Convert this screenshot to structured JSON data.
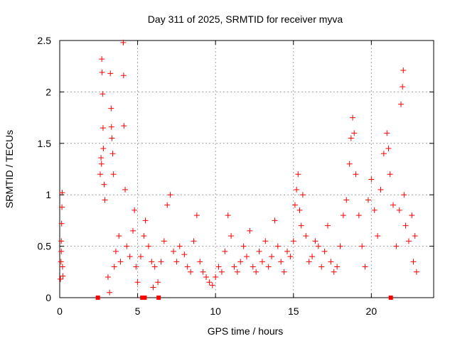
{
  "chart_data": {
    "type": "scatter",
    "title": "Day 311 of 2025, SRMTID for receiver myva",
    "xlabel": "GPS time / hours",
    "ylabel": "SRMTID / TECUs",
    "xlim": [
      0,
      24
    ],
    "ylim": [
      0,
      2.5
    ],
    "xticks": [
      0,
      5,
      10,
      15,
      20
    ],
    "yticks": [
      0,
      0.5,
      1,
      1.5,
      2,
      2.5
    ],
    "xtick_labels": [
      "0",
      "5",
      "10",
      "15",
      "20"
    ],
    "ytick_labels": [
      "0",
      "0.5",
      "1",
      "1.5",
      "2",
      "2.5"
    ],
    "grid": true,
    "series": [
      {
        "name": "SRMTID",
        "marker": "plus",
        "color": "#ff0000",
        "points": [
          [
            0.05,
            0.18
          ],
          [
            0.08,
            0.35
          ],
          [
            0.1,
            0.55
          ],
          [
            0.12,
            0.72
          ],
          [
            0.14,
            0.88
          ],
          [
            0.16,
            1.02
          ],
          [
            0.18,
            0.3
          ],
          [
            0.2,
            0.21
          ],
          [
            2.65,
            1.36
          ],
          [
            2.7,
            2.32
          ],
          [
            2.72,
            2.19
          ],
          [
            2.75,
            1.98
          ],
          [
            2.78,
            1.65
          ],
          [
            2.8,
            1.45
          ],
          [
            2.85,
            1.1
          ],
          [
            2.9,
            0.95
          ],
          [
            3.25,
            2.18
          ],
          [
            3.3,
            1.84
          ],
          [
            3.32,
            1.66
          ],
          [
            3.35,
            1.55
          ],
          [
            3.4,
            1.4
          ],
          [
            3.45,
            1.2
          ],
          [
            4.08,
            2.48
          ],
          [
            4.1,
            2.16
          ],
          [
            4.12,
            1.67
          ],
          [
            4.2,
            1.05
          ],
          [
            0.1,
            0.45
          ],
          [
            2.6,
            1.2
          ],
          [
            2.68,
            1.3
          ],
          [
            3.1,
            0.2
          ],
          [
            3.2,
            0.05
          ],
          [
            3.5,
            0.3
          ],
          [
            3.6,
            0.45
          ],
          [
            3.8,
            0.6
          ],
          [
            3.9,
            0.35
          ],
          [
            4.3,
            0.5
          ],
          [
            4.5,
            0.4
          ],
          [
            4.7,
            0.65
          ],
          [
            4.8,
            0.85
          ],
          [
            4.9,
            0.3
          ],
          [
            5.0,
            0.15
          ],
          [
            5.2,
            0.4
          ],
          [
            5.4,
            0.6
          ],
          [
            5.5,
            0.75
          ],
          [
            5.7,
            0.5
          ],
          [
            5.9,
            0.35
          ],
          [
            6.0,
            0.1
          ],
          [
            6.1,
            0.3
          ],
          [
            6.3,
            0.15
          ],
          [
            6.5,
            0.35
          ],
          [
            6.7,
            0.55
          ],
          [
            6.9,
            0.9
          ],
          [
            7.1,
            1.0
          ],
          [
            7.3,
            0.45
          ],
          [
            7.5,
            0.35
          ],
          [
            7.7,
            0.5
          ],
          [
            8.0,
            0.42
          ],
          [
            8.2,
            0.3
          ],
          [
            8.4,
            0.25
          ],
          [
            8.6,
            0.55
          ],
          [
            8.8,
            0.8
          ],
          [
            9.0,
            0.35
          ],
          [
            9.2,
            0.25
          ],
          [
            9.4,
            0.2
          ],
          [
            9.6,
            0.15
          ],
          [
            9.8,
            0.12
          ],
          [
            10.0,
            0.2
          ],
          [
            10.2,
            0.3
          ],
          [
            10.4,
            0.25
          ],
          [
            10.6,
            0.45
          ],
          [
            10.8,
            0.8
          ],
          [
            11.0,
            0.6
          ],
          [
            11.2,
            0.3
          ],
          [
            11.4,
            0.25
          ],
          [
            11.6,
            0.35
          ],
          [
            11.8,
            0.5
          ],
          [
            12.0,
            0.4
          ],
          [
            12.2,
            0.65
          ],
          [
            12.4,
            0.3
          ],
          [
            12.6,
            0.25
          ],
          [
            12.8,
            0.45
          ],
          [
            13.0,
            0.35
          ],
          [
            13.2,
            0.55
          ],
          [
            13.4,
            0.3
          ],
          [
            13.6,
            0.4
          ],
          [
            13.8,
            0.75
          ],
          [
            14.0,
            0.5
          ],
          [
            14.2,
            0.35
          ],
          [
            14.4,
            0.25
          ],
          [
            14.6,
            0.45
          ],
          [
            14.8,
            0.4
          ],
          [
            15.0,
            0.55
          ],
          [
            15.1,
            0.9
          ],
          [
            15.2,
            1.05
          ],
          [
            15.3,
            1.2
          ],
          [
            15.4,
            0.85
          ],
          [
            15.5,
            0.7
          ],
          [
            15.6,
            1.0
          ],
          [
            15.8,
            0.6
          ],
          [
            16.0,
            0.35
          ],
          [
            16.2,
            0.4
          ],
          [
            16.4,
            0.55
          ],
          [
            16.6,
            0.5
          ],
          [
            16.8,
            0.3
          ],
          [
            17.0,
            0.45
          ],
          [
            17.2,
            0.7
          ],
          [
            17.4,
            0.35
          ],
          [
            17.6,
            0.25
          ],
          [
            17.8,
            0.3
          ],
          [
            18.0,
            0.5
          ],
          [
            18.2,
            0.8
          ],
          [
            18.4,
            0.95
          ],
          [
            18.6,
            1.3
          ],
          [
            18.7,
            1.55
          ],
          [
            18.8,
            1.75
          ],
          [
            18.9,
            1.6
          ],
          [
            19.0,
            1.2
          ],
          [
            19.2,
            0.8
          ],
          [
            19.4,
            0.5
          ],
          [
            19.6,
            0.3
          ],
          [
            19.8,
            0.95
          ],
          [
            20.0,
            1.15
          ],
          [
            20.2,
            0.85
          ],
          [
            20.4,
            0.6
          ],
          [
            20.6,
            1.05
          ],
          [
            20.8,
            1.4
          ],
          [
            21.0,
            1.6
          ],
          [
            21.1,
            1.45
          ],
          [
            21.2,
            1.2
          ],
          [
            21.4,
            0.9
          ],
          [
            21.6,
            0.5
          ],
          [
            21.8,
            0.85
          ],
          [
            21.9,
            1.88
          ],
          [
            22.0,
            2.05
          ],
          [
            22.05,
            2.21
          ],
          [
            22.1,
            1.0
          ],
          [
            22.2,
            0.7
          ],
          [
            22.4,
            0.55
          ],
          [
            22.6,
            0.8
          ],
          [
            22.7,
            0.35
          ],
          [
            22.8,
            0.6
          ],
          [
            22.9,
            0.25
          ]
        ]
      },
      {
        "name": "zero-markers",
        "marker": "square",
        "color": "#ff0000",
        "points": [
          [
            2.45,
            0
          ],
          [
            5.3,
            0
          ],
          [
            5.45,
            0
          ],
          [
            6.35,
            0
          ],
          [
            21.25,
            0
          ]
        ]
      }
    ]
  }
}
